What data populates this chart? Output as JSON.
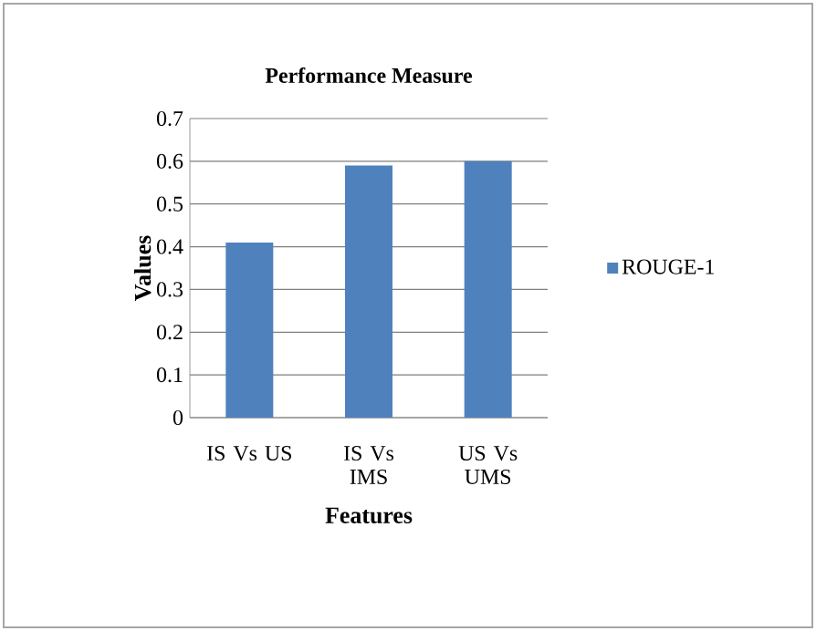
{
  "chart_data": {
    "type": "bar",
    "title": "Performance Measure",
    "xlabel": "Features",
    "ylabel": "Values",
    "categories": [
      "IS Vs US",
      "IS Vs IMS",
      "US Vs UMS"
    ],
    "series": [
      {
        "name": "ROUGE-1",
        "color": "#4f81bd",
        "values": [
          0.41,
          0.59,
          0.6
        ]
      }
    ],
    "ylim": [
      0,
      0.7
    ],
    "yticks": [
      0,
      0.1,
      0.2,
      0.3,
      0.4,
      0.5,
      0.6,
      0.7
    ],
    "grid": "y",
    "legend": "right"
  }
}
